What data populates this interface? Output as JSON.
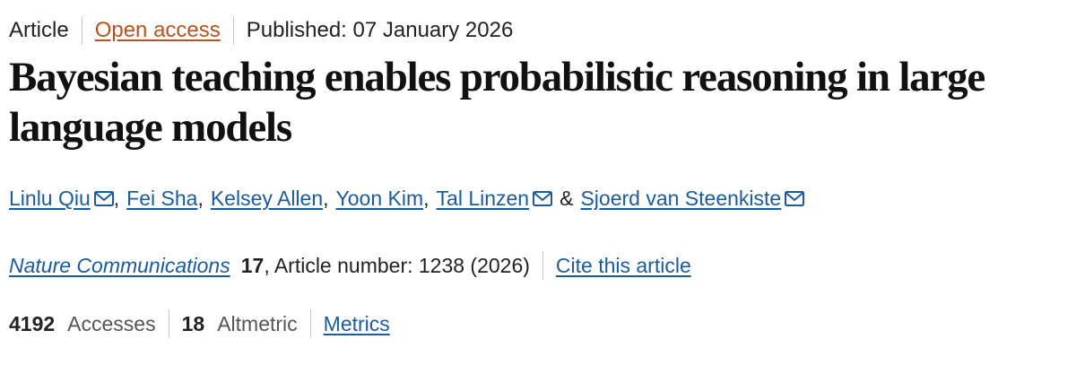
{
  "header": {
    "type": "Article",
    "access": "Open access",
    "published": "Published: 07 January 2026"
  },
  "title": "Bayesian teaching enables probabilistic reasoning in large language models",
  "authors": [
    "Linlu Qiu",
    "Fei Sha",
    "Kelsey Allen",
    "Yoon Kim",
    "Tal Linzen",
    "Sjoerd van Steenkiste"
  ],
  "separators": [
    ",",
    ",",
    ",",
    ",",
    "&"
  ],
  "citation": {
    "journal": "Nature Communications",
    "volume": "17",
    "details": ", Article number: 1238 (2026)",
    "cite": "Cite this article"
  },
  "metrics": {
    "accesses": 4192,
    "accesses_label": "Accesses",
    "altmetric": 18,
    "altmetric_label": "Altmetric",
    "link": "Metrics"
  }
}
